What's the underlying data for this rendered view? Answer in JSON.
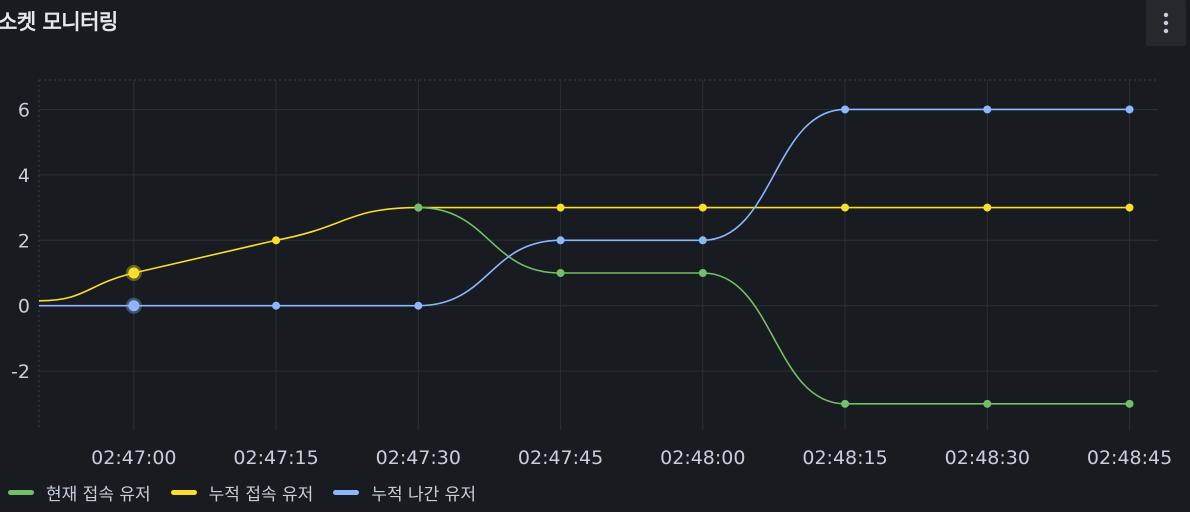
{
  "panel": {
    "title": "소켓 모니터링",
    "menu_icon": "kebab-menu-icon"
  },
  "colors": {
    "background": "#181b1f",
    "grid": "#2c2f34",
    "text": "#ccccdc",
    "green": "#73bf69",
    "yellow": "#fade2a",
    "blue": "#8ab8ff"
  },
  "chart_data": {
    "type": "line",
    "x": [
      "02:46:55",
      "02:47:00",
      "02:47:15",
      "02:47:30",
      "02:47:45",
      "02:48:00",
      "02:48:15",
      "02:48:30",
      "02:48:45"
    ],
    "xticks": [
      "02:47:00",
      "02:47:15",
      "02:47:30",
      "02:47:45",
      "02:48:00",
      "02:48:15",
      "02:48:30",
      "02:48:45"
    ],
    "yticks": [
      6,
      4,
      2,
      0,
      -2
    ],
    "ylim": [
      -3.8,
      6.9
    ],
    "xlim": [
      "02:46:50",
      "02:48:48"
    ],
    "grid": true,
    "legend_position": "bottom-left",
    "series": [
      {
        "name": "현재 접속 유저",
        "color": "#73bf69",
        "points": [
          [
            "02:47:30",
            3
          ],
          [
            "02:47:45",
            1
          ],
          [
            "02:48:00",
            1
          ],
          [
            "02:48:15",
            -3
          ],
          [
            "02:48:30",
            -3
          ],
          [
            "02:48:45",
            -3
          ]
        ]
      },
      {
        "name": "누적 접속 유저",
        "color": "#fade2a",
        "points": [
          [
            "02:46:50",
            0.15
          ],
          [
            "02:47:00",
            1
          ],
          [
            "02:47:15",
            2
          ],
          [
            "02:47:30",
            3
          ],
          [
            "02:47:45",
            3
          ],
          [
            "02:48:00",
            3
          ],
          [
            "02:48:15",
            3
          ],
          [
            "02:48:30",
            3
          ],
          [
            "02:48:45",
            3
          ]
        ]
      },
      {
        "name": "누적 나간 유저",
        "color": "#8ab8ff",
        "points": [
          [
            "02:46:50",
            0
          ],
          [
            "02:47:00",
            0
          ],
          [
            "02:47:15",
            0
          ],
          [
            "02:47:30",
            0
          ],
          [
            "02:47:45",
            2
          ],
          [
            "02:48:00",
            2
          ],
          [
            "02:48:15",
            6
          ],
          [
            "02:48:30",
            6
          ],
          [
            "02:48:45",
            6
          ]
        ]
      }
    ]
  },
  "legend": {
    "items": [
      {
        "label": "현재 접속 유저",
        "color": "#73bf69"
      },
      {
        "label": "누적 접속 유저",
        "color": "#fade2a"
      },
      {
        "label": "누적 나간 유저",
        "color": "#8ab8ff"
      }
    ]
  }
}
